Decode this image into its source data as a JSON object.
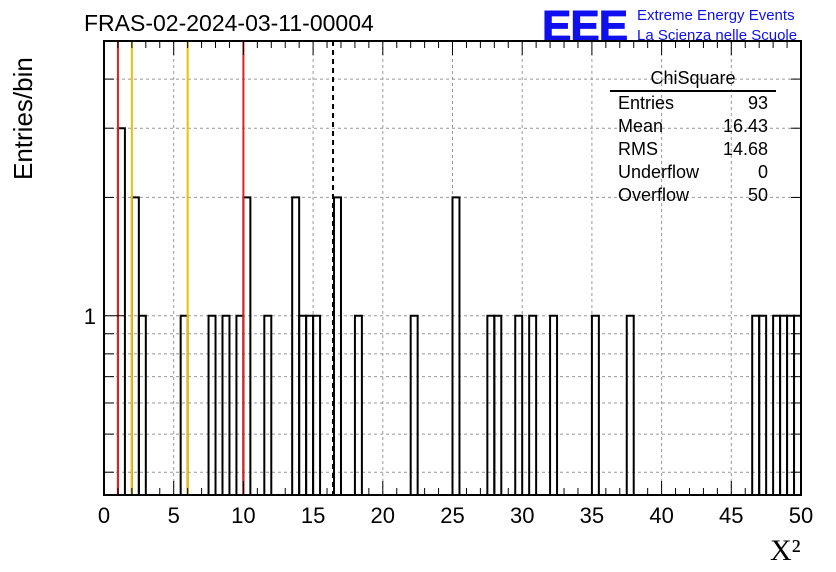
{
  "chart_data": {
    "type": "histogram",
    "title": "FRAS-02-2024-03-11-00004",
    "xlabel": "X²",
    "ylabel": "Entries/bin",
    "xlim": [
      0,
      50
    ],
    "ylog": true,
    "y_display_range": [
      0.35,
      5.0
    ],
    "bin_width": 0.5,
    "x_ticks": [
      "0",
      "5",
      "10",
      "15",
      "20",
      "25",
      "30",
      "35",
      "40",
      "45",
      "50"
    ],
    "y_tick_labels": [
      {
        "value": 1,
        "label": "1"
      }
    ],
    "grid": true,
    "bins": [
      {
        "x": 1.0,
        "count": 3
      },
      {
        "x": 2.0,
        "count": 2
      },
      {
        "x": 2.5,
        "count": 1
      },
      {
        "x": 5.5,
        "count": 1
      },
      {
        "x": 7.5,
        "count": 1
      },
      {
        "x": 8.5,
        "count": 1
      },
      {
        "x": 9.5,
        "count": 1
      },
      {
        "x": 10.0,
        "count": 2
      },
      {
        "x": 11.5,
        "count": 1
      },
      {
        "x": 13.5,
        "count": 2
      },
      {
        "x": 14.0,
        "count": 1
      },
      {
        "x": 14.5,
        "count": 1
      },
      {
        "x": 15.0,
        "count": 1
      },
      {
        "x": 16.5,
        "count": 2
      },
      {
        "x": 18.0,
        "count": 1
      },
      {
        "x": 22.0,
        "count": 1
      },
      {
        "x": 25.0,
        "count": 2
      },
      {
        "x": 27.5,
        "count": 1
      },
      {
        "x": 28.0,
        "count": 1
      },
      {
        "x": 29.5,
        "count": 1
      },
      {
        "x": 30.5,
        "count": 1
      },
      {
        "x": 32.0,
        "count": 1
      },
      {
        "x": 35.0,
        "count": 1
      },
      {
        "x": 37.5,
        "count": 1
      },
      {
        "x": 46.5,
        "count": 1
      },
      {
        "x": 47.0,
        "count": 1
      },
      {
        "x": 48.0,
        "count": 1
      },
      {
        "x": 48.5,
        "count": 1
      },
      {
        "x": 49.0,
        "count": 1
      },
      {
        "x": 49.5,
        "count": 1
      }
    ],
    "vertical_lines": [
      {
        "x": 1.0,
        "color": "#dd2222",
        "style": "solid"
      },
      {
        "x": 2.0,
        "color": "#f0c000",
        "style": "solid"
      },
      {
        "x": 6.0,
        "color": "#f0c000",
        "style": "solid"
      },
      {
        "x": 10.0,
        "color": "#dd2222",
        "style": "solid"
      },
      {
        "x": 16.43,
        "color": "#000000",
        "style": "dashed"
      }
    ],
    "stats_box": {
      "name": "ChiSquare",
      "rows": [
        {
          "label": "Entries",
          "value": "93"
        },
        {
          "label": "Mean",
          "value": "16.43"
        },
        {
          "label": "RMS",
          "value": "14.68"
        },
        {
          "label": "Underflow",
          "value": "0"
        },
        {
          "label": "Overflow",
          "value": "50"
        }
      ]
    }
  },
  "logo": {
    "text": "EEE",
    "line1": "Extreme Energy Events",
    "line2": "La Scienza nelle Scuole",
    "color": "#1010ee"
  }
}
